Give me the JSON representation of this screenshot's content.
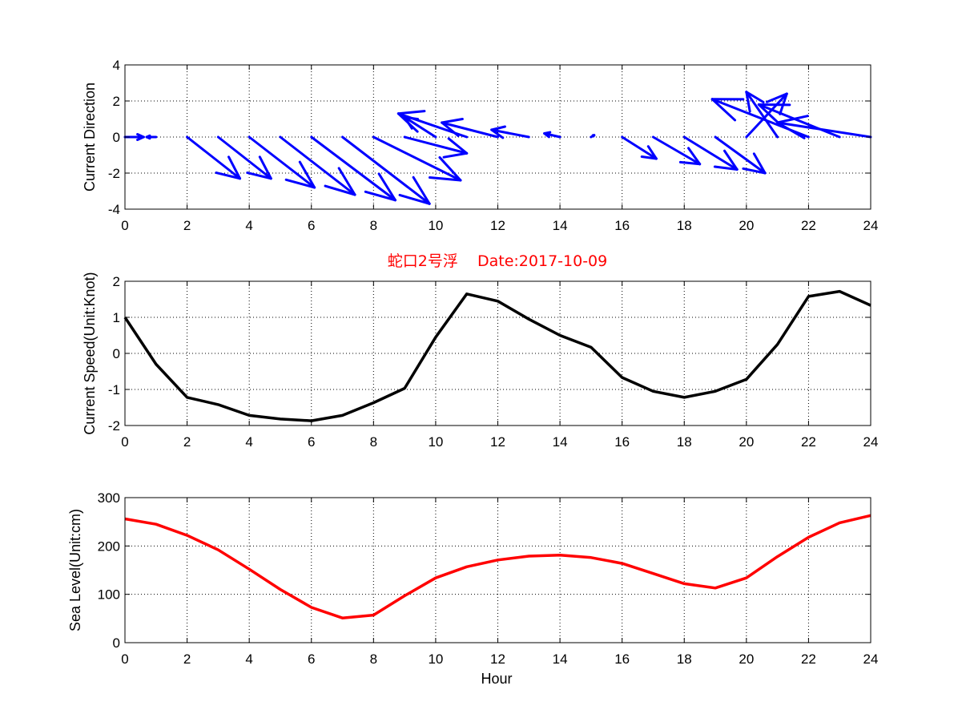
{
  "colors": {
    "arrow": "#0000ff",
    "speed": "#000000",
    "sea_level": "#ff0000",
    "title": "#ff0000"
  },
  "chart_data": [
    {
      "type": "quiver",
      "title": "",
      "xlabel": "",
      "ylabel": "Current Direction",
      "xlim": [
        0,
        24
      ],
      "ylim": [
        -4,
        4
      ],
      "grid": true,
      "xticks": [
        "0",
        "2",
        "4",
        "6",
        "8",
        "10",
        "12",
        "14",
        "16",
        "18",
        "20",
        "22",
        "24"
      ],
      "yticks": [
        "-4",
        "-2",
        "0",
        "2",
        "4"
      ],
      "x": [
        0,
        1,
        2,
        3,
        4,
        5,
        6,
        7,
        8,
        9,
        10,
        11,
        12,
        13,
        14,
        15,
        16,
        17,
        18,
        19,
        20,
        21,
        22,
        23,
        24
      ],
      "u": [
        0.6,
        -0.3,
        1.7,
        1.7,
        2.1,
        2.4,
        2.7,
        2.8,
        2.8,
        2.0,
        -1.0,
        -2.2,
        -1.8,
        -1.2,
        -0.5,
        0.1,
        1.1,
        1.5,
        1.7,
        1.6,
        1.3,
        -1.0,
        -3.1,
        -2.6,
        -3.0
      ],
      "v": [
        0,
        0,
        -2.3,
        -2.3,
        -2.8,
        -3.2,
        -3.5,
        -3.7,
        -2.4,
        -0.9,
        1.1,
        1.3,
        0.8,
        0.4,
        0.2,
        0.1,
        -1.2,
        -1.5,
        -1.8,
        -2.0,
        2.4,
        2.5,
        2.1,
        1.8,
        0.8
      ]
    },
    {
      "type": "line",
      "title": "蛇口2号浮    Date:2017-10-09",
      "xlabel": "",
      "ylabel": "Current Speed(Unit:Knot)",
      "xlim": [
        0,
        24
      ],
      "ylim": [
        -2,
        2
      ],
      "grid": true,
      "xticks": [
        "0",
        "2",
        "4",
        "6",
        "8",
        "10",
        "12",
        "14",
        "16",
        "18",
        "20",
        "22",
        "24"
      ],
      "yticks": [
        "-2",
        "-1",
        "0",
        "1",
        "2"
      ],
      "x": [
        0,
        1,
        2,
        3,
        4,
        5,
        6,
        7,
        8,
        9,
        10,
        11,
        12,
        13,
        14,
        15,
        16,
        17,
        18,
        19,
        20,
        21,
        22,
        23,
        24
      ],
      "values": [
        1.0,
        -0.3,
        -1.22,
        -1.42,
        -1.72,
        -1.82,
        -1.87,
        -1.72,
        -1.37,
        -0.97,
        0.45,
        1.65,
        1.45,
        0.95,
        0.5,
        0.17,
        -0.67,
        -1.05,
        -1.22,
        -1.05,
        -0.72,
        0.25,
        1.58,
        1.72,
        1.33
      ]
    },
    {
      "type": "line",
      "title": "",
      "xlabel": "Hour",
      "ylabel": "Sea Level(Unit:cm)",
      "xlim": [
        0,
        24
      ],
      "ylim": [
        0,
        300
      ],
      "grid": true,
      "xticks": [
        "0",
        "2",
        "4",
        "6",
        "8",
        "10",
        "12",
        "14",
        "16",
        "18",
        "20",
        "22",
        "24"
      ],
      "yticks": [
        "0",
        "100",
        "200",
        "300"
      ],
      "x": [
        0,
        1,
        2,
        3,
        4,
        5,
        6,
        7,
        8,
        9,
        10,
        11,
        12,
        13,
        14,
        15,
        16,
        17,
        18,
        19,
        20,
        21,
        22,
        23,
        24
      ],
      "values": [
        256,
        245,
        222,
        192,
        152,
        110,
        73,
        51,
        57,
        97,
        134,
        157,
        171,
        179,
        181,
        176,
        164,
        143,
        122,
        113,
        134,
        178,
        218,
        248,
        263
      ]
    }
  ]
}
